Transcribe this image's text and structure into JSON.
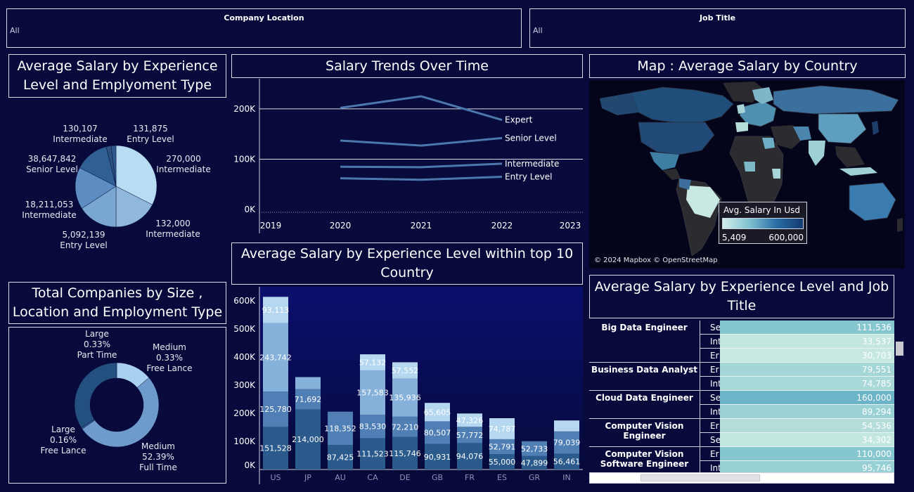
{
  "filters": {
    "company_location": {
      "title": "Company Location",
      "value": "All"
    },
    "job_title": {
      "title": "Job Title",
      "value": "All"
    }
  },
  "pie_panel": {
    "title": "Average Salary by Experience Level and Emplyoment Type",
    "slices": [
      {
        "value": "270,000",
        "label": "Intermediate",
        "color": "#b8dcf2"
      },
      {
        "value": "132,000",
        "label": "Intermediate",
        "color": "#8fb8dc"
      },
      {
        "value": "5,092,139",
        "label": "Entry Level",
        "color": "#7aa6d2"
      },
      {
        "value": "18,211,053",
        "label": "Intermediate",
        "color": "#5d8cc0"
      },
      {
        "value": "38,647,842",
        "label": "Senior Level",
        "color": "#305f93"
      },
      {
        "value": "130,107",
        "label": "Intermediate",
        "color": "#2c5282"
      },
      {
        "value": "131,875",
        "label": "Entry Level",
        "color": "#2f5a8e"
      }
    ]
  },
  "donut_panel": {
    "title": "Total Companies by Size , Location and Employment Type",
    "segments": [
      {
        "size": "Medium",
        "pct": "0.33%",
        "type": "Free Lance",
        "color": "#a9d0ee"
      },
      {
        "size": "Medium",
        "pct": "52.39%",
        "type": "Full Time",
        "color": "#6e9bcc"
      },
      {
        "size": "Large",
        "pct": "0.16%",
        "type": "Free Lance",
        "color": "#3a6699"
      },
      {
        "size": "Large",
        "pct": "0.33%",
        "type": "Part Time",
        "color": "#24507f"
      }
    ]
  },
  "line_panel": {
    "title": "Salary Trends Over Time",
    "chart_data": {
      "type": "line",
      "x": [
        "2019",
        "2020",
        "2021",
        "2022",
        "2023"
      ],
      "y_ticks": [
        "200K",
        "100K",
        "0K"
      ],
      "ylim": [
        0,
        260000
      ],
      "series": [
        {
          "name": "Expert",
          "values": [
            null,
            202000,
            225000,
            178000,
            null
          ]
        },
        {
          "name": "Senior Level",
          "values": [
            null,
            137000,
            127000,
            142000,
            null
          ]
        },
        {
          "name": "Intermediate",
          "values": [
            null,
            85000,
            84000,
            91000,
            null
          ]
        },
        {
          "name": "Entry Level",
          "values": [
            null,
            62000,
            59000,
            65000,
            null
          ]
        }
      ]
    }
  },
  "bar_panel": {
    "title": "Average Salary by Experience Level within top 10 Country",
    "chart_data": {
      "type": "bar",
      "stacked": true,
      "categories": [
        "US",
        "JP",
        "AU",
        "CA",
        "DE",
        "GB",
        "FR",
        "ES",
        "GR",
        "IN"
      ],
      "y_ticks": [
        "600K",
        "500K",
        "400K",
        "300K",
        "200K",
        "100K",
        "0K"
      ],
      "ylim": [
        0,
        640000
      ],
      "colors": [
        "#2b5a8c",
        "#4f7fb5",
        "#86b1db",
        "#b5d7f0"
      ],
      "stacks": [
        [
          151528,
          125780,
          243742,
          93113
        ],
        [
          214000,
          71692,
          43000,
          0
        ],
        [
          87425,
          118352,
          0,
          0
        ],
        [
          111523,
          83530,
          157583,
          57132
        ],
        [
          115746,
          72210,
          135936,
          57552
        ],
        [
          90931,
          80507,
          0,
          65605
        ],
        [
          94076,
          57772,
          0,
          47326
        ],
        [
          55000,
          52791,
          0,
          74787
        ],
        [
          47899,
          52733,
          0,
          0
        ],
        [
          56461,
          79039,
          0,
          39000
        ]
      ],
      "labels": [
        [
          "151,528",
          "125,780",
          "243,742",
          "93,113"
        ],
        [
          "214,000",
          "71,692",
          "",
          ""
        ],
        [
          "87,425",
          "118,352",
          "",
          ""
        ],
        [
          "111,523",
          "83,530",
          "157,583",
          "57,132"
        ],
        [
          "115,746",
          "72,210",
          "135,936",
          "57,552"
        ],
        [
          "90,931",
          "80,507",
          "",
          "65,605"
        ],
        [
          "94,076",
          "57,772",
          "",
          "47,326"
        ],
        [
          "55,000",
          "52,791",
          "",
          "74,787"
        ],
        [
          "47,899",
          "52,733",
          "",
          ""
        ],
        [
          "56,461",
          "79,039",
          "",
          ""
        ]
      ]
    }
  },
  "map_panel": {
    "title": "Map : Average  Salary by Country",
    "legend_title": "Avg. Salary In Usd",
    "legend_min": "5,409",
    "legend_max": "600,000",
    "attribution": "© 2024 Mapbox © OpenStreetMap"
  },
  "table_panel": {
    "title": "Average Salary by Experience Level and Job Title",
    "groups": [
      {
        "title": "Big Data Engineer",
        "rows": [
          {
            "lvl": "Se",
            "value": "111,536",
            "color": "#86c6cf"
          },
          {
            "lvl": "Int",
            "value": "33,537",
            "color": "#c3e6e0"
          },
          {
            "lvl": "Er",
            "value": "30,703",
            "color": "#c6e8e1"
          }
        ]
      },
      {
        "title": "Business Data Analyst",
        "rows": [
          {
            "lvl": "Er",
            "value": "79,551",
            "color": "#a4d6d7"
          },
          {
            "lvl": "Int",
            "value": "74,785",
            "color": "#a8d8d8"
          }
        ]
      },
      {
        "title": "Cloud Data Engineer",
        "rows": [
          {
            "lvl": "Se",
            "value": "160,000",
            "color": "#6cb4c7"
          },
          {
            "lvl": "Int",
            "value": "89,294",
            "color": "#9ad1d5"
          }
        ]
      },
      {
        "title": "Computer Vision Engineer",
        "rows": [
          {
            "lvl": "Er",
            "value": "54,536",
            "color": "#b4ddd9"
          },
          {
            "lvl": "Se",
            "value": "34,302",
            "color": "#c3e6e0"
          }
        ]
      },
      {
        "title": "Computer Vision Software Engineer",
        "rows": [
          {
            "lvl": "Er",
            "value": "110,000",
            "color": "#86c6cf"
          },
          {
            "lvl": "Int",
            "value": "95,746",
            "color": "#96cfd4"
          }
        ]
      }
    ]
  }
}
